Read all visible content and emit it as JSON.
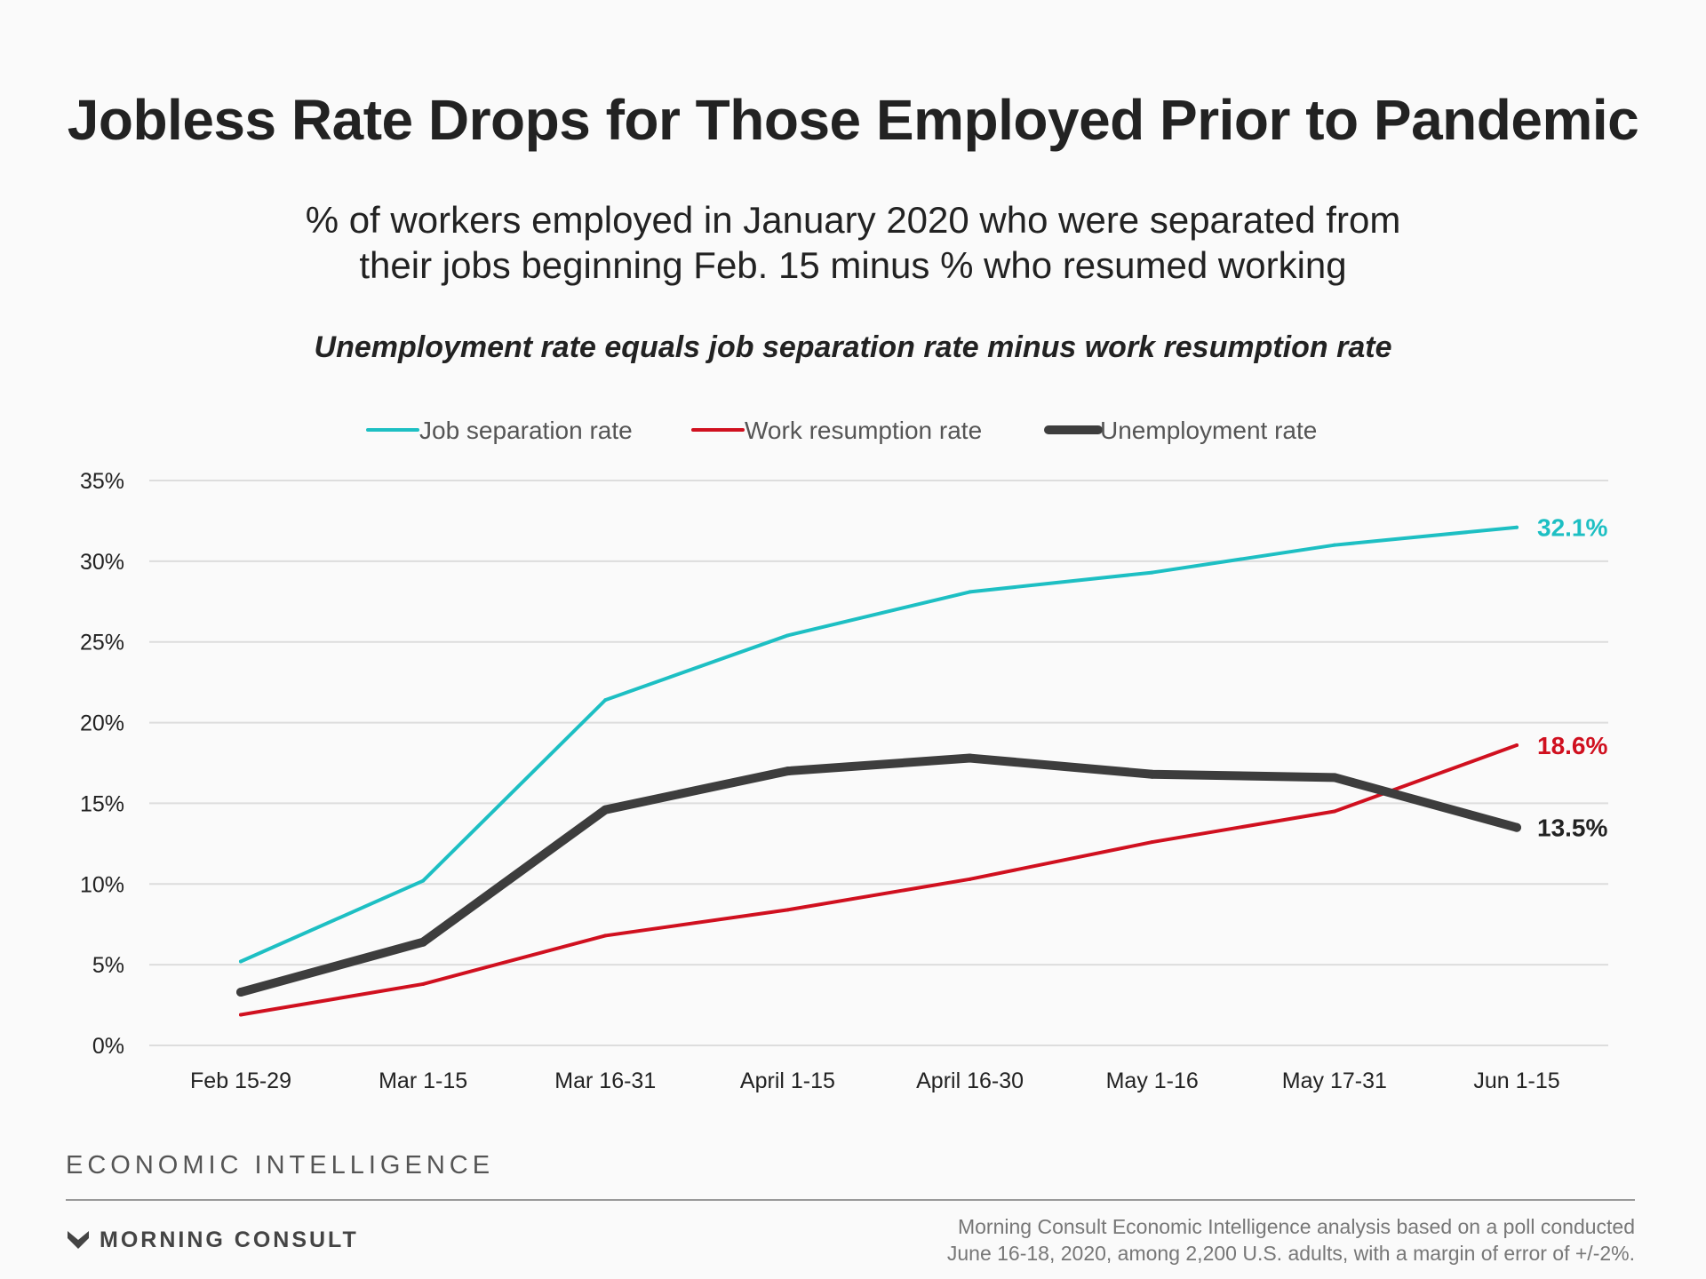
{
  "title": "Jobless Rate Drops for Those Employed Prior to Pandemic",
  "subtitle_line1": "% of workers employed in January 2020 who were separated from",
  "subtitle_line2": "their jobs beginning Feb. 15 minus % who resumed working",
  "note": "Unemployment rate equals job separation rate minus work resumption rate",
  "brand_top": "ECONOMIC INTELLIGENCE",
  "brand_logo_text": "MORNING CONSULT",
  "brand_logo_icon": "morning-consult-chevron-logo",
  "source_line1": "Morning Consult Economic Intelligence analysis based on a poll conducted",
  "source_line2": "June 16-18, 2020, among 2,200 U.S. adults, with a margin of error of +/-2%.",
  "chart_data": {
    "type": "line",
    "title": "Jobless Rate Drops for Those Employed Prior to Pandemic",
    "xlabel": "",
    "ylabel": "",
    "ylim": [
      0,
      35
    ],
    "yticks": [
      "0%",
      "5%",
      "10%",
      "15%",
      "20%",
      "25%",
      "30%",
      "35%"
    ],
    "grid": true,
    "legend_position": "top-center",
    "categories": [
      "Feb 15-29",
      "Mar 1-15",
      "Mar 16-31",
      "April 1-15",
      "April 16-30",
      "May 1-16",
      "May 17-31",
      "Jun 1-15"
    ],
    "series": [
      {
        "name": "Job separation rate",
        "color": "#1dbfc3",
        "values": [
          5.2,
          10.2,
          21.4,
          25.4,
          28.1,
          29.3,
          31.0,
          32.1
        ],
        "end_label": "32.1%"
      },
      {
        "name": "Work resumption rate",
        "color": "#d0101f",
        "values": [
          1.9,
          3.8,
          6.8,
          8.4,
          10.3,
          12.6,
          14.5,
          18.6
        ],
        "end_label": "18.6%"
      },
      {
        "name": "Unemployment rate",
        "color": "#3d3d3d",
        "values": [
          3.3,
          6.4,
          14.6,
          17.0,
          17.8,
          16.8,
          16.6,
          13.5
        ],
        "end_label": "13.5%"
      }
    ]
  }
}
